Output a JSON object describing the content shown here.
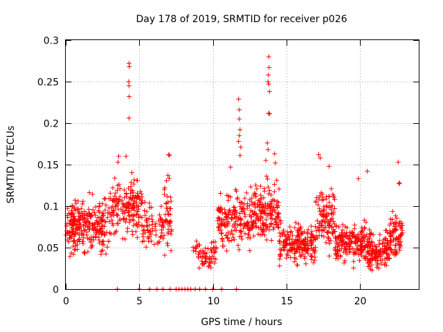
{
  "chart_data": {
    "type": "scatter",
    "title": "Day 178 of 2019, SRMTID for receiver p026",
    "xlabel": "GPS time / hours",
    "ylabel": "SRMTID / TECUs",
    "xlim": [
      0,
      24
    ],
    "ylim": [
      0,
      0.3
    ],
    "grid": true,
    "x_ticks": [
      0,
      5,
      10,
      15,
      20
    ],
    "x_tick_labels": [
      "0",
      "5",
      "10",
      "15",
      "20"
    ],
    "y_ticks": [
      0,
      0.05,
      0.1,
      0.15,
      0.2,
      0.25,
      0.3
    ],
    "y_tick_labels": [
      "0",
      "0.05",
      "0.1",
      "0.15",
      "0.2",
      "0.25",
      "0.3"
    ],
    "marker": "plus",
    "color": "#ff0000",
    "series": [
      {
        "name": "SRMTID",
        "clusters": [
          {
            "x_range": [
              0.0,
              1.0
            ],
            "y_center": 0.075,
            "y_spread": 0.03,
            "count": 110
          },
          {
            "x_range": [
              1.0,
              3.0
            ],
            "y_center": 0.075,
            "y_spread": 0.028,
            "count": 160
          },
          {
            "x_range": [
              3.0,
              5.2
            ],
            "y_center": 0.1,
            "y_spread": 0.03,
            "count": 170
          },
          {
            "x_range": [
              5.2,
              6.7
            ],
            "y_center": 0.075,
            "y_spread": 0.025,
            "count": 70
          },
          {
            "x_range": [
              6.7,
              7.2
            ],
            "y_center": 0.09,
            "y_spread": 0.04,
            "count": 40
          },
          {
            "x_range": [
              8.4,
              9.0
            ],
            "y_center": 0.05,
            "y_spread": 0.01,
            "count": 8
          },
          {
            "x_range": [
              9.0,
              10.3
            ],
            "y_center": 0.04,
            "y_spread": 0.015,
            "count": 60
          },
          {
            "x_range": [
              10.3,
              12.8
            ],
            "y_center": 0.085,
            "y_spread": 0.03,
            "count": 190
          },
          {
            "x_range": [
              12.8,
              14.5
            ],
            "y_center": 0.095,
            "y_spread": 0.03,
            "count": 150
          },
          {
            "x_range": [
              14.5,
              17.0
            ],
            "y_center": 0.055,
            "y_spread": 0.02,
            "count": 200
          },
          {
            "x_range": [
              17.0,
              18.3
            ],
            "y_center": 0.085,
            "y_spread": 0.03,
            "count": 110
          },
          {
            "x_range": [
              18.3,
              20.5
            ],
            "y_center": 0.055,
            "y_spread": 0.02,
            "count": 190
          },
          {
            "x_range": [
              20.5,
              22.0
            ],
            "y_center": 0.045,
            "y_spread": 0.02,
            "count": 140
          },
          {
            "x_range": [
              22.0,
              22.9
            ],
            "y_center": 0.065,
            "y_spread": 0.025,
            "count": 80
          }
        ],
        "spikes": [
          {
            "x": 4.3,
            "y": 0.272
          },
          {
            "x": 4.32,
            "y": 0.268
          },
          {
            "x": 4.28,
            "y": 0.25
          },
          {
            "x": 4.3,
            "y": 0.245
          },
          {
            "x": 4.31,
            "y": 0.232
          },
          {
            "x": 4.3,
            "y": 0.206
          },
          {
            "x": 3.6,
            "y": 0.16
          },
          {
            "x": 3.55,
            "y": 0.153
          },
          {
            "x": 4.1,
            "y": 0.16
          },
          {
            "x": 7.0,
            "y": 0.162
          },
          {
            "x": 7.05,
            "y": 0.161
          },
          {
            "x": 6.95,
            "y": 0.137
          },
          {
            "x": 11.75,
            "y": 0.229
          },
          {
            "x": 11.8,
            "y": 0.216
          },
          {
            "x": 11.8,
            "y": 0.205
          },
          {
            "x": 11.85,
            "y": 0.192
          },
          {
            "x": 11.8,
            "y": 0.185
          },
          {
            "x": 11.75,
            "y": 0.178
          },
          {
            "x": 11.9,
            "y": 0.171
          },
          {
            "x": 11.85,
            "y": 0.161
          },
          {
            "x": 11.2,
            "y": 0.147
          },
          {
            "x": 13.8,
            "y": 0.28
          },
          {
            "x": 13.82,
            "y": 0.267
          },
          {
            "x": 13.78,
            "y": 0.258
          },
          {
            "x": 13.8,
            "y": 0.247
          },
          {
            "x": 13.85,
            "y": 0.238
          },
          {
            "x": 13.75,
            "y": 0.25
          },
          {
            "x": 13.8,
            "y": 0.212
          },
          {
            "x": 13.85,
            "y": 0.211
          },
          {
            "x": 13.7,
            "y": 0.176
          },
          {
            "x": 13.75,
            "y": 0.168
          },
          {
            "x": 13.6,
            "y": 0.155
          },
          {
            "x": 14.2,
            "y": 0.163
          },
          {
            "x": 14.25,
            "y": 0.152
          },
          {
            "x": 17.2,
            "y": 0.162
          },
          {
            "x": 17.3,
            "y": 0.158
          },
          {
            "x": 17.9,
            "y": 0.148
          },
          {
            "x": 19.9,
            "y": 0.133
          },
          {
            "x": 20.5,
            "y": 0.142
          },
          {
            "x": 22.6,
            "y": 0.153
          },
          {
            "x": 22.65,
            "y": 0.127
          },
          {
            "x": 22.7,
            "y": 0.128
          },
          {
            "x": 11.55,
            "y": 0.12
          },
          {
            "x": 11.6,
            "y": 0.118
          },
          {
            "x": 10.95,
            "y": 0.046
          }
        ],
        "zero_points": [
          3.5,
          5.0,
          5.7,
          6.2,
          6.6,
          7.1,
          7.5,
          7.7,
          7.9,
          8.1,
          8.3,
          8.5,
          8.8,
          9.1,
          9.5,
          10.0,
          10.6,
          11.6
        ]
      }
    ]
  }
}
